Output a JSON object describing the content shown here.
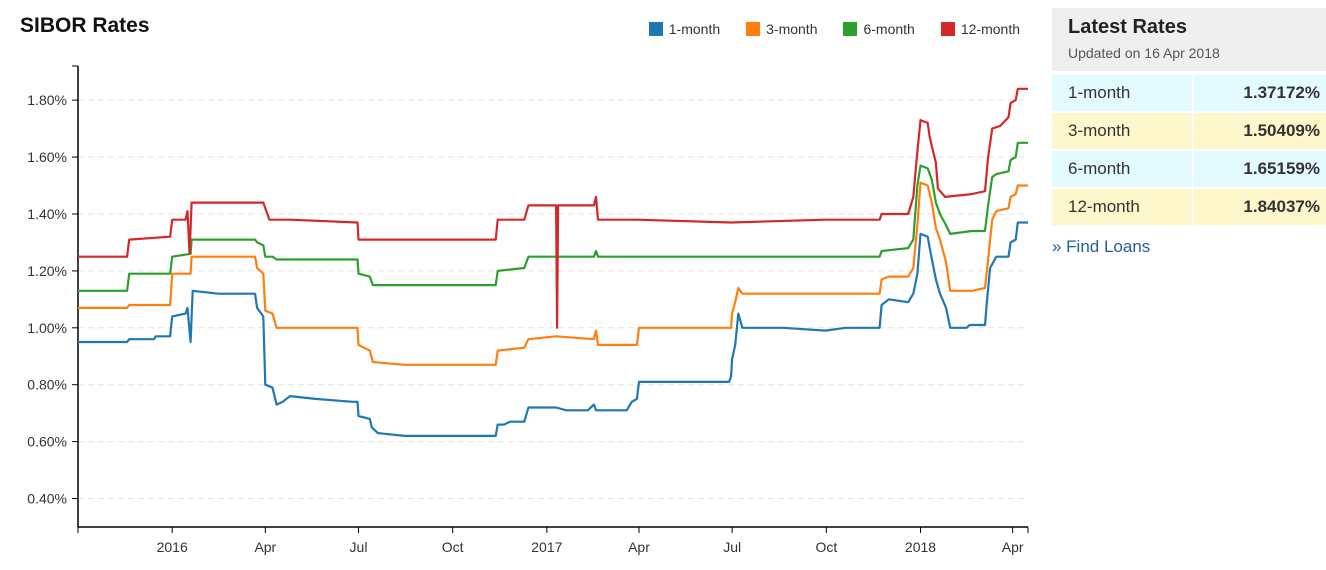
{
  "chart_data": {
    "type": "line",
    "title": "SIBOR Rates",
    "xlabel": "",
    "ylabel": "",
    "x_ticks": [
      "2016",
      "Apr",
      "Jul",
      "Oct",
      "2017",
      "Apr",
      "Jul",
      "Oct",
      "2018",
      "Apr"
    ],
    "x_tick_dates": [
      "2016-01-01",
      "2016-04-01",
      "2016-07-01",
      "2016-10-01",
      "2017-01-01",
      "2017-04-01",
      "2017-07-01",
      "2017-10-01",
      "2018-01-01",
      "2018-04-01"
    ],
    "xlim": [
      "2015-10-01",
      "2018-04-16"
    ],
    "y_ticks": [
      "0.40%",
      "0.60%",
      "0.80%",
      "1.00%",
      "1.20%",
      "1.40%",
      "1.60%",
      "1.80%"
    ],
    "y_tick_values": [
      0.4,
      0.6,
      0.8,
      1.0,
      1.2,
      1.4,
      1.6,
      1.8
    ],
    "ylim": [
      0.3,
      1.92
    ],
    "grid": "horizontal-dashed",
    "legend": "top-right",
    "series": [
      {
        "name": "1-month",
        "color": "#1f77b4",
        "points": [
          [
            "2015-10-01",
            0.95
          ],
          [
            "2015-11-18",
            0.95
          ],
          [
            "2015-11-20",
            0.96
          ],
          [
            "2015-12-14",
            0.96
          ],
          [
            "2015-12-16",
            0.97
          ],
          [
            "2015-12-30",
            0.97
          ],
          [
            "2016-01-01",
            1.04
          ],
          [
            "2016-01-14",
            1.05
          ],
          [
            "2016-01-16",
            1.07
          ],
          [
            "2016-01-19",
            0.95
          ],
          [
            "2016-01-21",
            1.13
          ],
          [
            "2016-02-15",
            1.12
          ],
          [
            "2016-03-15",
            1.12
          ],
          [
            "2016-03-22",
            1.12
          ],
          [
            "2016-03-24",
            1.07
          ],
          [
            "2016-03-30",
            1.04
          ],
          [
            "2016-04-01",
            0.8
          ],
          [
            "2016-04-08",
            0.79
          ],
          [
            "2016-04-12",
            0.73
          ],
          [
            "2016-04-18",
            0.74
          ],
          [
            "2016-04-25",
            0.76
          ],
          [
            "2016-05-20",
            0.75
          ],
          [
            "2016-06-25",
            0.74
          ],
          [
            "2016-06-30",
            0.74
          ],
          [
            "2016-07-01",
            0.69
          ],
          [
            "2016-07-12",
            0.68
          ],
          [
            "2016-07-14",
            0.65
          ],
          [
            "2016-07-20",
            0.63
          ],
          [
            "2016-08-15",
            0.62
          ],
          [
            "2016-09-10",
            0.62
          ],
          [
            "2016-10-15",
            0.62
          ],
          [
            "2016-11-12",
            0.62
          ],
          [
            "2016-11-14",
            0.66
          ],
          [
            "2016-11-20",
            0.66
          ],
          [
            "2016-11-26",
            0.67
          ],
          [
            "2016-12-10",
            0.67
          ],
          [
            "2016-12-14",
            0.72
          ],
          [
            "2017-01-10",
            0.72
          ],
          [
            "2017-01-20",
            0.71
          ],
          [
            "2017-02-10",
            0.71
          ],
          [
            "2017-02-16",
            0.73
          ],
          [
            "2017-02-18",
            0.71
          ],
          [
            "2017-03-20",
            0.71
          ],
          [
            "2017-03-25",
            0.74
          ],
          [
            "2017-03-30",
            0.75
          ],
          [
            "2017-04-01",
            0.81
          ],
          [
            "2017-05-20",
            0.81
          ],
          [
            "2017-06-28",
            0.81
          ],
          [
            "2017-06-30",
            0.83
          ],
          [
            "2017-07-01",
            0.89
          ],
          [
            "2017-07-04",
            0.94
          ],
          [
            "2017-07-07",
            1.05
          ],
          [
            "2017-07-11",
            1.0
          ],
          [
            "2017-08-20",
            1.0
          ],
          [
            "2017-09-30",
            0.99
          ],
          [
            "2017-10-20",
            1.0
          ],
          [
            "2017-11-10",
            1.0
          ],
          [
            "2017-11-22",
            1.0
          ],
          [
            "2017-11-24",
            1.08
          ],
          [
            "2017-12-01",
            1.1
          ],
          [
            "2017-12-20",
            1.09
          ],
          [
            "2017-12-25",
            1.12
          ],
          [
            "2017-12-29",
            1.19
          ],
          [
            "2018-01-01",
            1.33
          ],
          [
            "2018-01-08",
            1.32
          ],
          [
            "2018-01-10",
            1.28
          ],
          [
            "2018-01-16",
            1.17
          ],
          [
            "2018-01-20",
            1.12
          ],
          [
            "2018-01-26",
            1.07
          ],
          [
            "2018-01-30",
            1.0
          ],
          [
            "2018-02-15",
            1.0
          ],
          [
            "2018-02-18",
            1.01
          ],
          [
            "2018-03-05",
            1.01
          ],
          [
            "2018-03-07",
            1.1
          ],
          [
            "2018-03-10",
            1.21
          ],
          [
            "2018-03-16",
            1.25
          ],
          [
            "2018-03-28",
            1.25
          ],
          [
            "2018-03-30",
            1.3
          ],
          [
            "2018-04-04",
            1.31
          ],
          [
            "2018-04-06",
            1.37
          ],
          [
            "2018-04-16",
            1.37
          ]
        ]
      },
      {
        "name": "3-month",
        "color": "#ff7f0e",
        "points": [
          [
            "2015-10-01",
            1.07
          ],
          [
            "2015-11-18",
            1.07
          ],
          [
            "2015-11-20",
            1.08
          ],
          [
            "2015-12-30",
            1.08
          ],
          [
            "2016-01-01",
            1.19
          ],
          [
            "2016-01-19",
            1.19
          ],
          [
            "2016-01-20",
            1.25
          ],
          [
            "2016-02-15",
            1.25
          ],
          [
            "2016-03-22",
            1.25
          ],
          [
            "2016-03-24",
            1.21
          ],
          [
            "2016-03-30",
            1.19
          ],
          [
            "2016-04-01",
            1.06
          ],
          [
            "2016-04-08",
            1.05
          ],
          [
            "2016-04-12",
            1.0
          ],
          [
            "2016-04-25",
            1.0
          ],
          [
            "2016-06-30",
            1.0
          ],
          [
            "2016-07-01",
            0.94
          ],
          [
            "2016-07-12",
            0.92
          ],
          [
            "2016-07-15",
            0.88
          ],
          [
            "2016-08-15",
            0.87
          ],
          [
            "2016-11-12",
            0.87
          ],
          [
            "2016-11-14",
            0.92
          ],
          [
            "2016-12-10",
            0.93
          ],
          [
            "2016-12-14",
            0.96
          ],
          [
            "2017-01-10",
            0.97
          ],
          [
            "2017-02-16",
            0.96
          ],
          [
            "2017-02-18",
            0.99
          ],
          [
            "2017-02-20",
            0.94
          ],
          [
            "2017-03-30",
            0.94
          ],
          [
            "2017-04-01",
            1.0
          ],
          [
            "2017-06-30",
            1.0
          ],
          [
            "2017-07-01",
            1.05
          ],
          [
            "2017-07-04",
            1.09
          ],
          [
            "2017-07-07",
            1.14
          ],
          [
            "2017-07-11",
            1.12
          ],
          [
            "2017-09-30",
            1.12
          ],
          [
            "2017-10-20",
            1.12
          ],
          [
            "2017-11-22",
            1.12
          ],
          [
            "2017-11-24",
            1.17
          ],
          [
            "2017-12-01",
            1.18
          ],
          [
            "2017-12-20",
            1.18
          ],
          [
            "2017-12-25",
            1.21
          ],
          [
            "2017-12-29",
            1.36
          ],
          [
            "2018-01-01",
            1.51
          ],
          [
            "2018-01-08",
            1.5
          ],
          [
            "2018-01-12",
            1.44
          ],
          [
            "2018-01-16",
            1.35
          ],
          [
            "2018-01-20",
            1.31
          ],
          [
            "2018-01-26",
            1.23
          ],
          [
            "2018-01-30",
            1.13
          ],
          [
            "2018-02-20",
            1.13
          ],
          [
            "2018-03-05",
            1.14
          ],
          [
            "2018-03-08",
            1.24
          ],
          [
            "2018-03-12",
            1.38
          ],
          [
            "2018-03-16",
            1.41
          ],
          [
            "2018-03-28",
            1.42
          ],
          [
            "2018-03-30",
            1.46
          ],
          [
            "2018-04-04",
            1.47
          ],
          [
            "2018-04-06",
            1.5
          ],
          [
            "2018-04-16",
            1.5
          ]
        ]
      },
      {
        "name": "6-month",
        "color": "#2ca02c",
        "points": [
          [
            "2015-10-01",
            1.13
          ],
          [
            "2015-11-18",
            1.13
          ],
          [
            "2015-11-20",
            1.19
          ],
          [
            "2015-12-30",
            1.19
          ],
          [
            "2016-01-01",
            1.25
          ],
          [
            "2016-01-19",
            1.26
          ],
          [
            "2016-01-20",
            1.31
          ],
          [
            "2016-02-15",
            1.31
          ],
          [
            "2016-03-22",
            1.31
          ],
          [
            "2016-03-24",
            1.3
          ],
          [
            "2016-03-30",
            1.29
          ],
          [
            "2016-04-01",
            1.25
          ],
          [
            "2016-04-08",
            1.25
          ],
          [
            "2016-04-12",
            1.24
          ],
          [
            "2016-04-25",
            1.24
          ],
          [
            "2016-06-30",
            1.24
          ],
          [
            "2016-07-01",
            1.19
          ],
          [
            "2016-07-12",
            1.18
          ],
          [
            "2016-07-15",
            1.15
          ],
          [
            "2016-08-15",
            1.15
          ],
          [
            "2016-11-12",
            1.15
          ],
          [
            "2016-11-14",
            1.2
          ],
          [
            "2016-12-10",
            1.21
          ],
          [
            "2016-12-14",
            1.25
          ],
          [
            "2017-01-10",
            1.25
          ],
          [
            "2017-02-16",
            1.25
          ],
          [
            "2017-02-18",
            1.27
          ],
          [
            "2017-02-20",
            1.25
          ],
          [
            "2017-03-30",
            1.25
          ],
          [
            "2017-04-01",
            1.25
          ],
          [
            "2017-06-30",
            1.25
          ],
          [
            "2017-07-01",
            1.25
          ],
          [
            "2017-09-30",
            1.25
          ],
          [
            "2017-11-22",
            1.25
          ],
          [
            "2017-11-24",
            1.27
          ],
          [
            "2017-12-20",
            1.28
          ],
          [
            "2017-12-25",
            1.31
          ],
          [
            "2017-12-29",
            1.5
          ],
          [
            "2018-01-01",
            1.57
          ],
          [
            "2018-01-08",
            1.56
          ],
          [
            "2018-01-12",
            1.52
          ],
          [
            "2018-01-16",
            1.44
          ],
          [
            "2018-01-20",
            1.4
          ],
          [
            "2018-01-26",
            1.36
          ],
          [
            "2018-01-30",
            1.33
          ],
          [
            "2018-02-20",
            1.34
          ],
          [
            "2018-03-05",
            1.34
          ],
          [
            "2018-03-08",
            1.43
          ],
          [
            "2018-03-12",
            1.53
          ],
          [
            "2018-03-16",
            1.54
          ],
          [
            "2018-03-28",
            1.55
          ],
          [
            "2018-03-30",
            1.59
          ],
          [
            "2018-04-04",
            1.6
          ],
          [
            "2018-04-06",
            1.65
          ],
          [
            "2018-04-16",
            1.65
          ]
        ]
      },
      {
        "name": "12-month",
        "color": "#d62728",
        "points": [
          [
            "2015-10-01",
            1.25
          ],
          [
            "2015-11-18",
            1.25
          ],
          [
            "2015-11-20",
            1.31
          ],
          [
            "2015-12-30",
            1.32
          ],
          [
            "2016-01-01",
            1.38
          ],
          [
            "2016-01-14",
            1.38
          ],
          [
            "2016-01-16",
            1.41
          ],
          [
            "2016-01-18",
            1.26
          ],
          [
            "2016-01-20",
            1.44
          ],
          [
            "2016-02-15",
            1.44
          ],
          [
            "2016-03-30",
            1.44
          ],
          [
            "2016-04-01",
            1.42
          ],
          [
            "2016-04-05",
            1.38
          ],
          [
            "2016-04-25",
            1.38
          ],
          [
            "2016-06-30",
            1.37
          ],
          [
            "2016-07-01",
            1.31
          ],
          [
            "2016-08-15",
            1.31
          ],
          [
            "2016-11-12",
            1.31
          ],
          [
            "2016-11-14",
            1.38
          ],
          [
            "2016-12-10",
            1.38
          ],
          [
            "2016-12-14",
            1.43
          ],
          [
            "2017-01-10",
            1.43
          ],
          [
            "2017-01-11",
            1.0
          ],
          [
            "2017-01-12",
            1.43
          ],
          [
            "2017-02-16",
            1.43
          ],
          [
            "2017-02-18",
            1.46
          ],
          [
            "2017-02-20",
            1.38
          ],
          [
            "2017-03-30",
            1.38
          ],
          [
            "2017-06-30",
            1.37
          ],
          [
            "2017-09-30",
            1.38
          ],
          [
            "2017-11-22",
            1.38
          ],
          [
            "2017-11-24",
            1.4
          ],
          [
            "2017-12-20",
            1.4
          ],
          [
            "2017-12-25",
            1.46
          ],
          [
            "2017-12-29",
            1.62
          ],
          [
            "2018-01-01",
            1.73
          ],
          [
            "2018-01-08",
            1.72
          ],
          [
            "2018-01-10",
            1.67
          ],
          [
            "2018-01-16",
            1.58
          ],
          [
            "2018-01-18",
            1.49
          ],
          [
            "2018-01-25",
            1.46
          ],
          [
            "2018-02-20",
            1.47
          ],
          [
            "2018-03-05",
            1.48
          ],
          [
            "2018-03-08",
            1.6
          ],
          [
            "2018-03-12",
            1.7
          ],
          [
            "2018-03-20",
            1.71
          ],
          [
            "2018-03-28",
            1.74
          ],
          [
            "2018-03-30",
            1.79
          ],
          [
            "2018-04-04",
            1.8
          ],
          [
            "2018-04-06",
            1.84
          ],
          [
            "2018-04-16",
            1.84
          ]
        ]
      }
    ]
  },
  "sidebar": {
    "title": "Latest Rates",
    "updated": "Updated on 16 Apr 2018",
    "rows": [
      {
        "tenor": "1-month",
        "rate": "1.37172%"
      },
      {
        "tenor": "3-month",
        "rate": "1.50409%"
      },
      {
        "tenor": "6-month",
        "rate": "1.65159%"
      },
      {
        "tenor": "12-month",
        "rate": "1.84037%"
      }
    ],
    "link_label": "» Find Loans"
  }
}
